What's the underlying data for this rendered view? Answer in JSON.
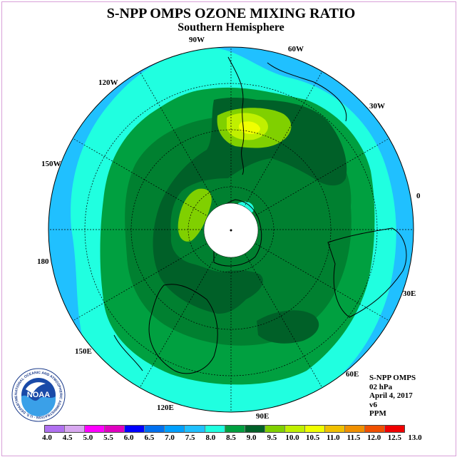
{
  "header": {
    "title": "S-NPP OMPS OZONE MIXING RATIO",
    "subtitle": "Southern Hemisphere"
  },
  "map": {
    "projection": "south-polar-stereographic",
    "longitude_labels": {
      "lon_90w": "90W",
      "lon_60w": "60W",
      "lon_120w": "120W",
      "lon_30w": "30W",
      "lon_150w": "150W",
      "lon_0": "0",
      "lon_180": "180",
      "lon_30e": "30E",
      "lon_150e": "150E",
      "lon_60e": "60E",
      "lon_120e": "120E",
      "lon_90e": "90E"
    },
    "no_data_color": "#ffffff"
  },
  "info": {
    "product": "S-NPP OMPS",
    "level": "02 hPa",
    "date": "April 4, 2017",
    "version": "v6",
    "units": "PPM"
  },
  "logo": {
    "name": "NOAA",
    "ring_text": "NATIONAL OCEANIC AND ATMOSPHERIC ADMINISTRATION · U.S. DEPARTMENT OF COMMERCE"
  },
  "colorbar": {
    "ticks": [
      "4.0",
      "4.5",
      "5.0",
      "5.5",
      "6.0",
      "6.5",
      "7.0",
      "7.5",
      "8.0",
      "8.5",
      "9.0",
      "9.5",
      "10.0",
      "10.5",
      "11.0",
      "11.5",
      "12.0",
      "12.5",
      "13.0"
    ],
    "colors": [
      "#b070f0",
      "#d8a8f0",
      "#ff00ff",
      "#e000c0",
      "#0000ff",
      "#0070f0",
      "#00a0ff",
      "#20c0ff",
      "#20ffe0",
      "#00a040",
      "#008030",
      "#006028",
      "#80d000",
      "#c0f000",
      "#f0ff00",
      "#f0c000",
      "#f09000",
      "#f05000",
      "#f00000",
      "#a02000",
      "#805030"
    ]
  },
  "chart_data": {
    "type": "heatmap",
    "title": "S-NPP OMPS OZONE MIXING RATIO",
    "subtitle": "Southern Hemisphere",
    "units": "PPM",
    "levels": [
      4.0,
      4.5,
      5.0,
      5.5,
      6.0,
      6.5,
      7.0,
      7.5,
      8.0,
      8.5,
      9.0,
      9.5,
      10.0,
      10.5,
      11.0,
      11.5,
      12.0,
      12.5,
      13.0
    ],
    "colors": [
      "#b070f0",
      "#d8a8f0",
      "#ff00ff",
      "#e000c0",
      "#0000ff",
      "#0070f0",
      "#00a0ff",
      "#20c0ff",
      "#20ffe0",
      "#00a040",
      "#008030",
      "#006028",
      "#80d000",
      "#c0f000",
      "#f0ff00",
      "#f0c000",
      "#f09000",
      "#f05000",
      "#f00000",
      "#a02000",
      "#805030"
    ]
  }
}
